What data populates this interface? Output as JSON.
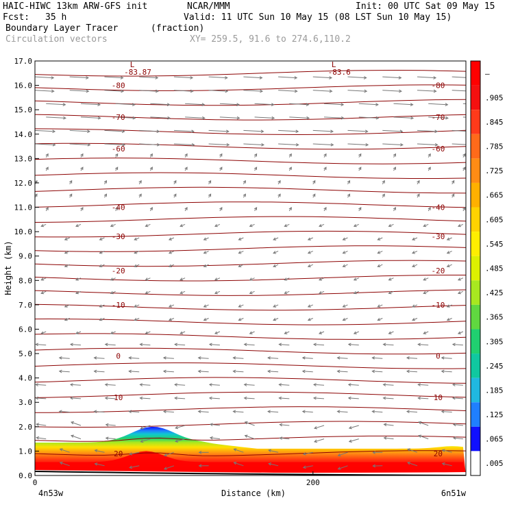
{
  "header": {
    "model": "HAIC-HIWC 13km ARW-GFS init",
    "org": "NCAR/MMM",
    "init": "Init: 00 UTC Sat 09 May 15",
    "fcst_label": "Fcst:",
    "fcst_value": "35 h",
    "valid": "Valid: 11 UTC Sun 10 May 15 (08 LST Sun 10 May 15)",
    "field": "Boundary Layer Tracer",
    "units": "(fraction)",
    "vectors": "Circulation vectors",
    "xy": "XY= 259.5, 91.6 to 274.6,110.2"
  },
  "chart_data": {
    "type": "heatmap",
    "title": "Boundary Layer Tracer",
    "ylabel": "Height (km)",
    "xlabel": "Distance (km)",
    "x_left_label": "4n53w",
    "x_right_label": "6n51w",
    "xlim": [
      0,
      310
    ],
    "ylim": [
      0,
      17
    ],
    "x_ticks": [
      "0",
      "200"
    ],
    "x_tick_values": [
      0,
      200
    ],
    "y_ticks": [
      "0.0",
      "1.0",
      "2.0",
      "3.0",
      "4.0",
      "5.0",
      "6.0",
      "7.0",
      "8.0",
      "9.0",
      "10.0",
      "11.0",
      "12.0",
      "13.0",
      "14.0",
      "15.0",
      "16.0",
      "17.0"
    ],
    "colorbar_labels": [
      "–",
      ".905",
      ".845",
      ".785",
      ".725",
      ".665",
      ".605",
      ".545",
      ".485",
      ".425",
      ".365",
      ".305",
      ".245",
      ".185",
      ".125",
      ".065",
      ".005"
    ],
    "colorbar_colors": [
      "#ff0000",
      "#f51010",
      "#ff3a1a",
      "#ff6a1a",
      "#ff8c14",
      "#ffb000",
      "#ffd200",
      "#ffee00",
      "#ddf000",
      "#a8e820",
      "#60d840",
      "#20d070",
      "#10c8a0",
      "#20b8e0",
      "#1f7fff",
      "#1010ff",
      "#ffffff"
    ],
    "temperature_contours": [
      {
        "label": "-80",
        "height": 16.0
      },
      {
        "label": "-70",
        "height": 14.7
      },
      {
        "label": "-60",
        "height": 13.4
      },
      {
        "label": "-40",
        "height": 11.0
      },
      {
        "label": "-30",
        "height": 9.8
      },
      {
        "label": "-20",
        "height": 8.4
      },
      {
        "label": "-10",
        "height": 7.0
      },
      {
        "label": "0",
        "height": 4.9
      },
      {
        "label": "10",
        "height": 3.2
      },
      {
        "label": "20",
        "height": 0.9
      }
    ],
    "minima": [
      {
        "label": "L",
        "value": "-83.87",
        "x": 70
      },
      {
        "label": "L",
        "value": "-83.6",
        "x": 215
      }
    ]
  }
}
